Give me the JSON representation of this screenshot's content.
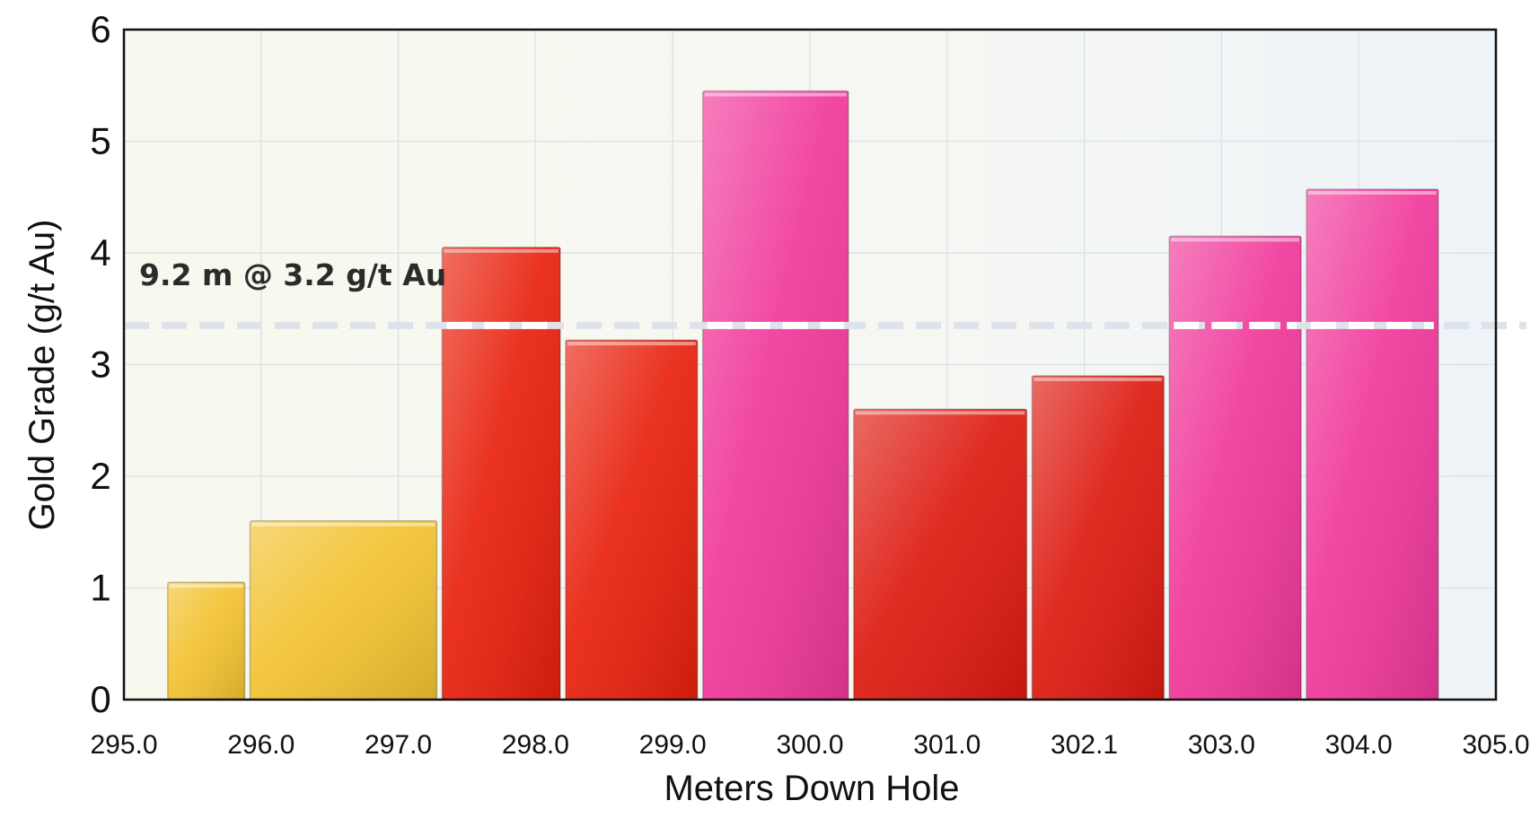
{
  "chart_data": {
    "type": "bar",
    "xlabel": "Meters Down Hole",
    "ylabel": "Gold Grade (g/t Au)",
    "xlim": [
      295.0,
      305.0
    ],
    "ylim": [
      0,
      6
    ],
    "x_ticks": [
      "295.0",
      "296.0",
      "297.0",
      "298.0",
      "299.0",
      "300.0",
      "301.0",
      "302.1",
      "303.0",
      "304.0",
      "305.0"
    ],
    "y_ticks": [
      0,
      1,
      2,
      3,
      4,
      5,
      6
    ],
    "grid": true,
    "bars": [
      {
        "from": 295.3,
        "to": 295.9,
        "value": 1.05,
        "color": "#f2c230"
      },
      {
        "from": 295.9,
        "to": 297.3,
        "value": 1.6,
        "color": "#f2c230"
      },
      {
        "from": 297.3,
        "to": 298.2,
        "value": 4.05,
        "color": "#e8200c"
      },
      {
        "from": 298.2,
        "to": 299.2,
        "value": 3.22,
        "color": "#e8200c"
      },
      {
        "from": 299.2,
        "to": 300.3,
        "value": 5.45,
        "color": "#f0389a"
      },
      {
        "from": 300.3,
        "to": 301.6,
        "value": 2.6,
        "color": "#dd1a10"
      },
      {
        "from": 301.6,
        "to": 302.6,
        "value": 2.9,
        "color": "#dd1a10"
      },
      {
        "from": 302.6,
        "to": 303.6,
        "value": 4.15,
        "color": "#f0389a"
      },
      {
        "from": 303.6,
        "to": 304.6,
        "value": 4.57,
        "color": "#f0389a"
      }
    ],
    "reference_line": {
      "value": 3.35,
      "style": "dashed",
      "color": "#e0e6ec"
    },
    "annotation": "9.2 m @ 3.2 g/t Au"
  }
}
